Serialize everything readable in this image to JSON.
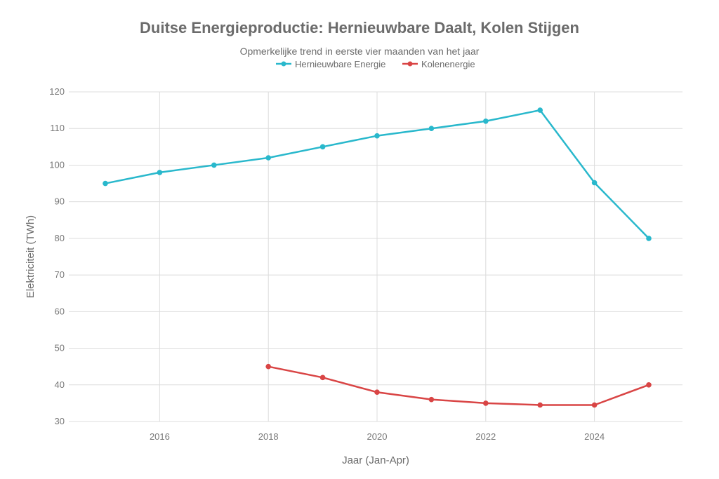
{
  "chart_data": {
    "type": "line",
    "title": "Duitse Energieproductie: Hernieuwbare Daalt, Kolen Stijgen",
    "subtitle": "Opmerkelijke trend in eerste vier maanden van het jaar",
    "xlabel": "Jaar (Jan-Apr)",
    "ylabel": "Elektriciteit (TWh)",
    "xlim": [
      2014,
      2025.6
    ],
    "ylim": [
      30,
      120
    ],
    "xticks": [
      2016,
      2018,
      2020,
      2022,
      2024
    ],
    "yticks": [
      30,
      40,
      50,
      60,
      70,
      80,
      90,
      100,
      110,
      120
    ],
    "grid": true,
    "legend_position": "top-center",
    "series": [
      {
        "name": "Hernieuwbare Energie",
        "color": "#29b8cc",
        "x": [
          2015,
          2016,
          2017,
          2018,
          2019,
          2020,
          2021,
          2022,
          2023,
          2024,
          2025
        ],
        "values": [
          95,
          98,
          100,
          102,
          105,
          108,
          110,
          112,
          115,
          95.2,
          80
        ]
      },
      {
        "name": "Kolenenergie",
        "color": "#d94545",
        "x": [
          2018,
          2019,
          2020,
          2021,
          2022,
          2023,
          2024,
          2025
        ],
        "values": [
          45,
          42,
          38,
          36,
          35,
          34.5,
          34.5,
          40
        ]
      }
    ]
  }
}
